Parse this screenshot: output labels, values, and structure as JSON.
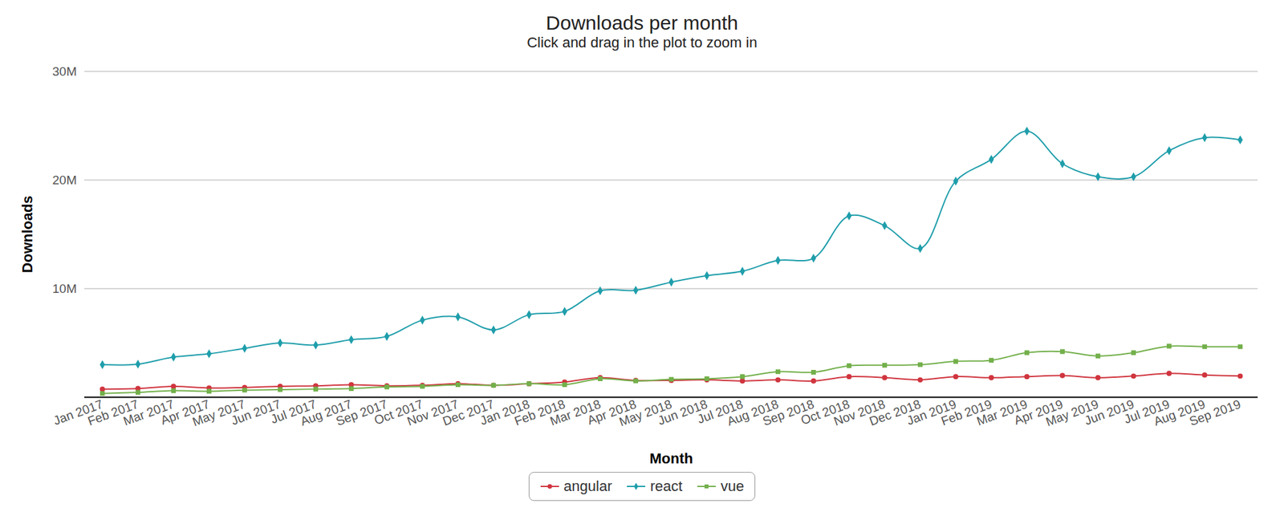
{
  "chart_data": {
    "type": "line",
    "title": "Downloads per month",
    "subtitle": "Click and drag in the plot to zoom in",
    "x_label": "Month",
    "y_label": "Downloads",
    "x": [
      "Jan 2017",
      "Feb 2017",
      "Mar 2017",
      "Apr 2017",
      "May 2017",
      "Jun 2017",
      "Jul 2017",
      "Aug 2017",
      "Sep 2017",
      "Oct 2017",
      "Nov 2017",
      "Dec 2017",
      "Jan 2018",
      "Feb 2018",
      "Mar 2018",
      "Apr 2018",
      "May 2018",
      "Jun 2018",
      "Jul 2018",
      "Aug 2018",
      "Sep 2018",
      "Oct 2018",
      "Nov 2018",
      "Dec 2018",
      "Jan 2019",
      "Feb 2019",
      "Mar 2019",
      "Apr 2019",
      "May 2019",
      "Jun 2019",
      "Jul 2019",
      "Aug 2019",
      "Sep 2019"
    ],
    "series": [
      {
        "name": "angular",
        "color": "#d0353f",
        "marker": "circle",
        "values": [
          750000,
          800000,
          1000000,
          850000,
          900000,
          1000000,
          1050000,
          1150000,
          1050000,
          1100000,
          1250000,
          1100000,
          1250000,
          1400000,
          1800000,
          1550000,
          1550000,
          1600000,
          1500000,
          1600000,
          1500000,
          1900000,
          1800000,
          1600000,
          1900000,
          1800000,
          1900000,
          2000000,
          1800000,
          1950000,
          2200000,
          2050000,
          1950000
        ]
      },
      {
        "name": "react",
        "color": "#1f9eab",
        "marker": "diamond",
        "values": [
          3000000,
          3050000,
          3700000,
          4000000,
          4500000,
          5000000,
          4800000,
          5300000,
          5600000,
          7100000,
          7400000,
          6200000,
          7600000,
          7900000,
          9800000,
          9850000,
          10600000,
          11200000,
          11600000,
          12600000,
          12800000,
          16700000,
          15800000,
          13700000,
          19900000,
          21900000,
          24500000,
          21500000,
          20300000,
          20300000,
          22700000,
          23900000,
          23700000
        ]
      },
      {
        "name": "vue",
        "color": "#73b04b",
        "marker": "square",
        "values": [
          350000,
          450000,
          600000,
          550000,
          650000,
          700000,
          750000,
          800000,
          950000,
          1000000,
          1150000,
          1100000,
          1250000,
          1150000,
          1700000,
          1500000,
          1650000,
          1700000,
          1900000,
          2350000,
          2300000,
          2900000,
          2950000,
          3000000,
          3300000,
          3400000,
          4100000,
          4200000,
          3800000,
          4100000,
          4700000,
          4650000,
          4650000
        ]
      }
    ],
    "ylim": [
      0,
      30000000
    ],
    "yticks": [
      {
        "value": 10000000,
        "label": "10M"
      },
      {
        "value": 20000000,
        "label": "20M"
      },
      {
        "value": 30000000,
        "label": "30M"
      }
    ],
    "grid": true,
    "legend": "bottom"
  }
}
